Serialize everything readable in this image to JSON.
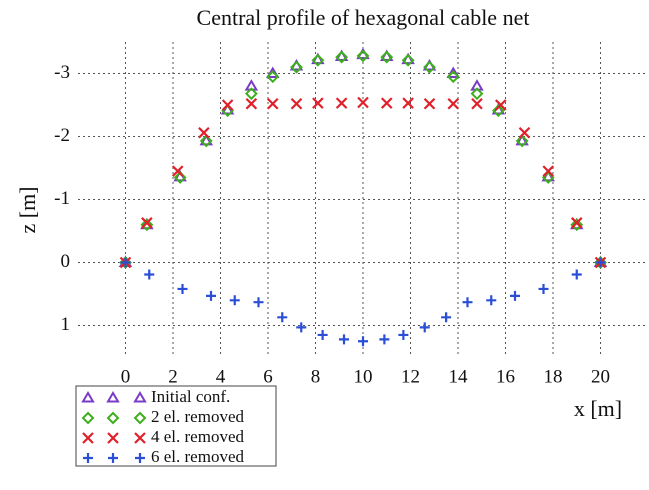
{
  "chart_data": {
    "type": "scatter",
    "title": "Central profile of hexagonal cable net",
    "x_label": "x [m]",
    "y_label": "z [m]",
    "xlim": [
      -2,
      22
    ],
    "xticks": [
      0,
      2,
      4,
      6,
      8,
      10,
      12,
      14,
      16,
      18,
      20
    ],
    "ylim": [
      1.5,
      -3.5
    ],
    "yticks": [
      1,
      0,
      -1,
      -2,
      -3
    ],
    "grid": true,
    "legend": "below-left",
    "series": [
      {
        "name": "Initial conf.",
        "color": "#7a3cc8",
        "marker": "triangle",
        "x": [
          0,
          0.9,
          2.3,
          3.4,
          4.3,
          5.3,
          6.2,
          7.2,
          8.1,
          9.1,
          10.0,
          11.0,
          11.9,
          12.8,
          13.8,
          14.8,
          15.7,
          16.7,
          17.8,
          19.0,
          20
        ],
        "values": [
          0,
          -0.6,
          -1.36,
          -1.93,
          -2.42,
          -2.8,
          -3.0,
          -3.12,
          -3.22,
          -3.27,
          -3.3,
          -3.27,
          -3.22,
          -3.12,
          -3.0,
          -2.8,
          -2.42,
          -1.93,
          -1.36,
          -0.6,
          0
        ]
      },
      {
        "name": "2 el. removed",
        "color": "#3cb01c",
        "marker": "diamond",
        "x": [
          0,
          0.9,
          2.3,
          3.4,
          4.3,
          5.3,
          6.2,
          7.2,
          8.1,
          9.1,
          10.0,
          11.0,
          11.9,
          12.8,
          13.8,
          14.8,
          15.7,
          16.7,
          17.8,
          19.0,
          20
        ],
        "values": [
          0,
          -0.6,
          -1.35,
          -1.93,
          -2.41,
          -2.68,
          -2.95,
          -3.1,
          -3.21,
          -3.26,
          -3.28,
          -3.26,
          -3.21,
          -3.1,
          -2.95,
          -2.68,
          -2.41,
          -1.93,
          -1.35,
          -0.6,
          0
        ]
      },
      {
        "name": "4 el. removed",
        "color": "#e0202a",
        "marker": "cross",
        "x": [
          0,
          0.9,
          2.2,
          3.3,
          4.3,
          5.3,
          6.2,
          7.2,
          8.1,
          9.1,
          10.0,
          11.0,
          11.9,
          12.8,
          13.8,
          14.8,
          15.8,
          16.8,
          17.8,
          19.0,
          20
        ],
        "values": [
          0,
          -0.63,
          -1.45,
          -2.06,
          -2.5,
          -2.52,
          -2.52,
          -2.52,
          -2.53,
          -2.53,
          -2.54,
          -2.53,
          -2.53,
          -2.52,
          -2.52,
          -2.52,
          -2.5,
          -2.06,
          -1.45,
          -0.63,
          0
        ]
      },
      {
        "name": "6 el. removed",
        "color": "#2a4fd6",
        "marker": "plus",
        "x": [
          0,
          1.0,
          2.4,
          3.6,
          4.6,
          5.6,
          6.6,
          7.4,
          8.3,
          9.2,
          10.0,
          10.9,
          11.7,
          12.6,
          13.5,
          14.4,
          15.4,
          16.4,
          17.6,
          19.0,
          20
        ],
        "values": [
          0,
          0.19,
          0.42,
          0.53,
          0.6,
          0.63,
          0.87,
          1.03,
          1.15,
          1.22,
          1.25,
          1.22,
          1.15,
          1.03,
          0.87,
          0.63,
          0.6,
          0.53,
          0.42,
          0.19,
          0
        ]
      }
    ]
  }
}
